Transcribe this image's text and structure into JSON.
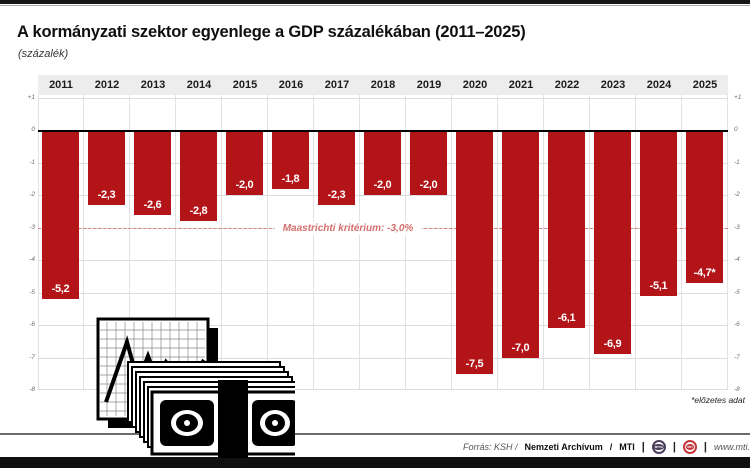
{
  "chart_data": {
    "type": "bar",
    "title": "A kormányzati szektor egyenlege a GDP százalékában (2011–2025)",
    "subtitle": "(százalék)",
    "categories": [
      "2011",
      "2012",
      "2013",
      "2014",
      "2015",
      "2016",
      "2017",
      "2018",
      "2019",
      "2020",
      "2021",
      "2022",
      "2023",
      "2024",
      "2025"
    ],
    "values": [
      -5.2,
      -2.3,
      -2.6,
      -2.8,
      -2.0,
      -1.8,
      -2.3,
      -2.0,
      -2.0,
      -7.5,
      -7.0,
      -6.1,
      -6.9,
      -5.1,
      -4.7
    ],
    "value_labels": [
      "-5,2",
      "-2,3",
      "-2,6",
      "-2,8",
      "-2,0",
      "-1,8",
      "-2,3",
      "-2,0",
      "-2,0",
      "-7,5",
      "-7,0",
      "-6,1",
      "-6,9",
      "-5,1",
      "-4,7*"
    ],
    "ylim": [
      -8,
      1
    ],
    "yticks": [
      "+1",
      "0",
      "-1",
      "-2",
      "-3",
      "-4",
      "-5",
      "-6",
      "-7",
      "-8"
    ],
    "ytick_values": [
      1,
      0,
      -1,
      -2,
      -3,
      -4,
      -5,
      -6,
      -7,
      -8
    ],
    "grid": true,
    "legend": "none",
    "reference_line": {
      "value": -3.0,
      "label": "Maastrichti kritérium: -3,0%"
    },
    "note": "*előzetes adat",
    "bar_color": "#b21418"
  },
  "footer": {
    "source_prefix": "Forrás: KSH /",
    "source_archive": "Nemzeti Archívum",
    "source_slash": "/",
    "source_agency": "MTI",
    "separator": "|",
    "logos": [
      {
        "name": "mtva-logo",
        "text": "MTVA"
      },
      {
        "name": "mti-logo",
        "text": "MTI"
      }
    ],
    "website": "www.mti.hu"
  },
  "colors": {
    "bar": "#b21418",
    "zero_line": "#000000",
    "gridline": "#dcdcdc",
    "years_band": "#ededed",
    "maastricht": "#d98080",
    "bottom_bar": "#101010"
  }
}
